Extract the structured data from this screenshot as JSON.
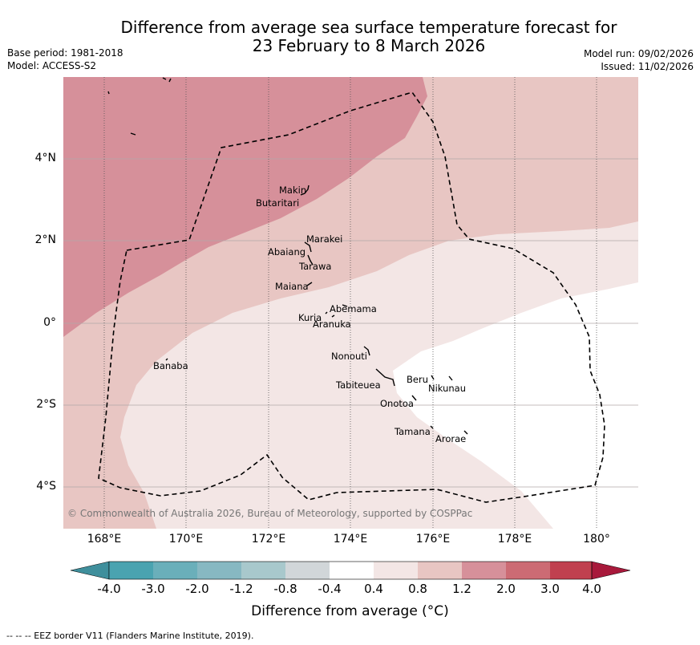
{
  "title_line1": "Difference from average sea surface temperature forecast for",
  "title_line2": "23 February to 8 March 2026",
  "base_period": "Base period: 1981-2018",
  "model": "Model: ACCESS-S2",
  "model_run": "Model run: 09/02/2026",
  "issued": "Issued: 11/02/2026",
  "credit": "© Commonwealth of Australia 2026, Bureau of Meteorology, supported by COSPPac",
  "footer": "--  --  -- EEZ border V11 (Flanders Marine Institute, 2019).",
  "lat_ticks": [
    "4°N",
    "2°N",
    "0°",
    "2°S",
    "4°S"
  ],
  "lon_ticks": [
    "168°E",
    "170°E",
    "172°E",
    "174°E",
    "176°E",
    "178°E",
    "180°"
  ],
  "islands": {
    "makin": "Makin",
    "butaritari": "Butaritari",
    "marakei": "Marakei",
    "abaiang": "Abaiang",
    "tarawa": "Tarawa",
    "maiana": "Maiana",
    "abemama": "Abemama",
    "kuria": "Kuria",
    "aranuka": "Aranuka",
    "nonouti": "Nonouti",
    "banaba": "Banaba",
    "tabiteuea": "Tabiteuea",
    "beru": "Beru",
    "nikunau": "Nikunau",
    "onotoa": "Onotoa",
    "tamana": "Tamana",
    "arorae": "Arorae"
  },
  "colorbar": {
    "ticks": [
      "-4.0",
      "-3.0",
      "-2.0",
      "-1.2",
      "-0.8",
      "-0.4",
      "0.4",
      "0.8",
      "1.2",
      "2.0",
      "3.0",
      "4.0"
    ],
    "colors": [
      "#3f8f9c",
      "#4aa3b0",
      "#6aafba",
      "#87b8c2",
      "#a8c8cc",
      "#d1d6d9",
      "#ffffff",
      "#f3e6e5",
      "#e8c6c3",
      "#d6909a",
      "#cc6b74",
      "#c0404f",
      "#a8193b"
    ],
    "label": "Difference from average (°C)"
  }
}
